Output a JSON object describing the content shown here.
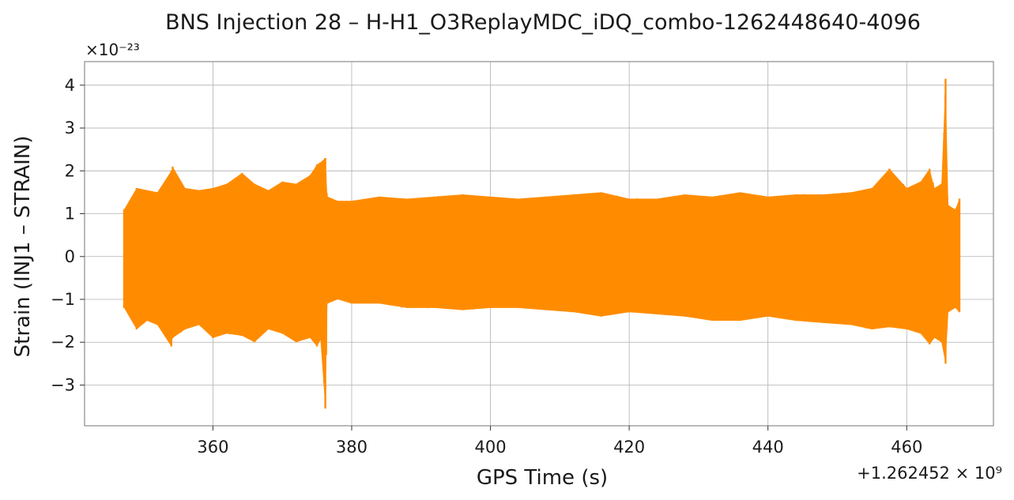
{
  "chart_data": {
    "type": "line",
    "title": "BNS Injection 28 – H-H1_O3ReplayMDC_iDQ_combo-1262448640-4096",
    "xlabel": "GPS Time (s)",
    "ylabel": "Strain (INJ1 – STRAIN)",
    "y_scale_label": "×10⁻²³",
    "x_offset_label": "+1.262452 × 10⁹",
    "x_ticks": [
      360,
      380,
      400,
      420,
      440,
      460
    ],
    "x_tick_labels": [
      "360",
      "380",
      "400",
      "420",
      "440",
      "460"
    ],
    "y_ticks": [
      -3,
      -2,
      -1,
      0,
      1,
      2,
      3,
      4
    ],
    "y_tick_labels": [
      "−3",
      "−2",
      "−1",
      "0",
      "1",
      "2",
      "3",
      "4"
    ],
    "xlim": [
      341.5,
      472.5
    ],
    "ylim": [
      -3.95,
      4.55
    ],
    "grid": true,
    "series": [
      {
        "color": "#ff8c00",
        "x": [
          347.2,
          349.0,
          350.5,
          352.0,
          354.0,
          354.2,
          356.0,
          358.0,
          360.0,
          362.0,
          364.2,
          366.0,
          368.0,
          370.0,
          372.0,
          374.0,
          375.0,
          375.5,
          376.2,
          376.5,
          378.0,
          380.0,
          384.0,
          388.0,
          392.0,
          396.0,
          400.0,
          404.0,
          408.0,
          412.0,
          416.0,
          420.0,
          424.0,
          428.0,
          432.0,
          436.0,
          440.0,
          444.0,
          448.0,
          452.0,
          455.0,
          457.5,
          460.0,
          462.0,
          463.3,
          464.0,
          465.0,
          465.6,
          466.0,
          467.0,
          467.6
        ],
        "y_max": [
          1.1,
          1.6,
          1.55,
          1.5,
          2.0,
          2.1,
          1.6,
          1.55,
          1.6,
          1.7,
          1.95,
          1.7,
          1.55,
          1.75,
          1.7,
          1.9,
          2.15,
          2.2,
          2.3,
          1.4,
          1.3,
          1.3,
          1.4,
          1.35,
          1.4,
          1.45,
          1.4,
          1.35,
          1.4,
          1.45,
          1.5,
          1.35,
          1.35,
          1.45,
          1.4,
          1.5,
          1.4,
          1.45,
          1.45,
          1.5,
          1.6,
          2.05,
          1.6,
          1.75,
          2.05,
          1.6,
          1.7,
          4.15,
          1.2,
          1.1,
          1.35
        ],
        "y_min": [
          -1.2,
          -1.7,
          -1.5,
          -1.6,
          -2.1,
          -1.9,
          -1.7,
          -1.6,
          -1.9,
          -1.8,
          -1.85,
          -2.0,
          -1.7,
          -1.8,
          -2.0,
          -1.9,
          -2.1,
          -1.95,
          -3.55,
          -1.1,
          -1.0,
          -1.1,
          -1.1,
          -1.2,
          -1.2,
          -1.25,
          -1.2,
          -1.2,
          -1.25,
          -1.3,
          -1.4,
          -1.3,
          -1.35,
          -1.4,
          -1.5,
          -1.5,
          -1.4,
          -1.5,
          -1.55,
          -1.6,
          -1.7,
          -1.65,
          -1.7,
          -1.8,
          -2.05,
          -1.9,
          -2.0,
          -2.5,
          -1.3,
          -1.2,
          -1.3
        ]
      }
    ]
  }
}
